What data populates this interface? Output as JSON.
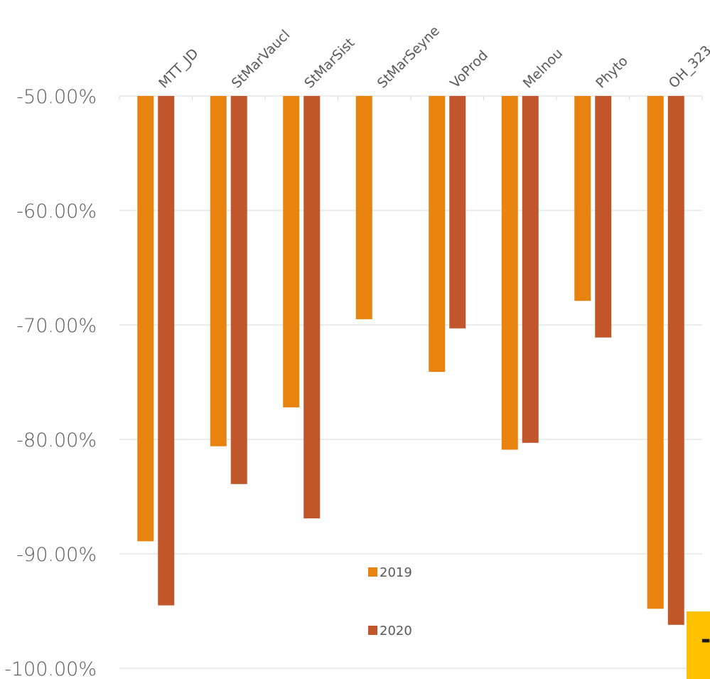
{
  "chart_data": {
    "type": "bar",
    "title": "",
    "xlabel": "",
    "ylabel": "",
    "categories": [
      "MTT_JD",
      "StMarVaucl",
      "StMarSist",
      "StMarSeyne",
      "VoProd",
      "Melnou",
      "Phyto",
      "OH_323"
    ],
    "series": [
      {
        "name": "2019",
        "color": "#e8830f",
        "values": [
          -88.9,
          -80.6,
          -77.2,
          -69.5,
          -74.1,
          -80.9,
          -67.9,
          -94.8
        ]
      },
      {
        "name": "2020",
        "color": "#c0562a",
        "values": [
          -94.5,
          -83.9,
          -86.9,
          null,
          -70.3,
          -80.3,
          -71.1,
          -96.2
        ]
      }
    ],
    "ylim": [
      -100,
      -50
    ],
    "yticks": [
      -50,
      -60,
      -70,
      -80,
      -90,
      -100
    ],
    "ytick_labels": [
      "-50.00%",
      "-60.00%",
      "-70.00%",
      "-80.00%",
      "-90.00%",
      "-100.00%"
    ],
    "grid": true,
    "legend": "inside-bottom-center",
    "annotation": {
      "text": "-",
      "color": "#ffc000"
    }
  }
}
